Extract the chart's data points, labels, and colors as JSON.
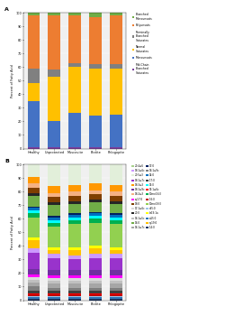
{
  "panel_A": {
    "categories": [
      "Healthy",
      "Unprotected",
      "Muscovite",
      "Biotite",
      "Phlogopite"
    ],
    "segments": [
      {
        "label": "Mid-Chain\nBranched\nSaturates",
        "color": "#7B3F9E",
        "values": [
          1,
          1,
          1,
          1,
          1
        ]
      },
      {
        "label": "Monounsats",
        "color": "#4472C4",
        "values": [
          34,
          19,
          25,
          23,
          24
        ]
      },
      {
        "label": "Normal\nSaturates",
        "color": "#FFC000",
        "values": [
          13,
          33,
          34,
          35,
          34
        ]
      },
      {
        "label": "Terminally\nBranched\nSaturates",
        "color": "#808080",
        "values": [
          11,
          5,
          3,
          3,
          3
        ]
      },
      {
        "label": "Polyunsats",
        "color": "#ED7D31",
        "values": [
          39,
          40,
          35,
          35,
          36
        ]
      },
      {
        "label": "Branched\nMonounsats",
        "color": "#70AD47",
        "values": [
          2,
          2,
          2,
          3,
          2
        ]
      }
    ],
    "ylabel": "Percent of Fatty Acid",
    "ylim": [
      0,
      100
    ]
  },
  "panel_B": {
    "categories": [
      "Healthy",
      "Unprotected",
      "Muscovite",
      "Biotite",
      "Phlogopite"
    ],
    "segments": [
      {
        "label": "i14:0",
        "color": "#1F3864",
        "values": [
          1,
          1,
          1,
          1,
          1
        ]
      },
      {
        "label": "ai15:0",
        "color": "#2E75B6",
        "values": [
          1,
          1,
          1,
          1,
          1
        ]
      },
      {
        "label": "a15:0",
        "color": "#9DC3E6",
        "values": [
          1,
          1,
          1,
          1,
          1
        ]
      },
      {
        "label": "i16:0",
        "color": "#C00000",
        "values": [
          1,
          1,
          1,
          1,
          1
        ]
      },
      {
        "label": "15:1ω6c",
        "color": "#FF0000",
        "values": [
          1,
          1,
          1,
          1,
          1
        ]
      },
      {
        "label": "i17:0",
        "color": "#404040",
        "values": [
          2,
          2,
          2,
          2,
          2
        ]
      },
      {
        "label": "16:1ω9c",
        "color": "#7F7F7F",
        "values": [
          3,
          2,
          2,
          2,
          2
        ]
      },
      {
        "label": "16:1ω7c",
        "color": "#A6A6A6",
        "values": [
          3,
          3,
          3,
          3,
          3
        ]
      },
      {
        "label": "16:1ω5c",
        "color": "#C0C0C0",
        "values": [
          2,
          2,
          2,
          2,
          2
        ]
      },
      {
        "label": "17:1ω6c",
        "color": "#D9D9D9",
        "values": [
          2,
          2,
          2,
          2,
          2
        ]
      },
      {
        "label": "cy17:0",
        "color": "#FF00FF",
        "values": [
          2,
          2,
          2,
          2,
          2
        ]
      },
      {
        "label": "18:1ω9c",
        "color": "#7030A0",
        "values": [
          4,
          4,
          4,
          4,
          4
        ]
      },
      {
        "label": "18:1ω7c",
        "color": "#9933CC",
        "values": [
          12,
          9,
          8,
          9,
          9
        ]
      },
      {
        "label": "18:1ω6c",
        "color": "#CC99FF",
        "values": [
          3,
          3,
          3,
          3,
          3
        ]
      },
      {
        "label": "cy19:0",
        "color": "#FFC000",
        "values": [
          6,
          3,
          4,
          4,
          3
        ]
      },
      {
        "label": "br19:1a",
        "color": "#FFFF00",
        "values": [
          2,
          2,
          2,
          2,
          2
        ]
      },
      {
        "label": "10me18:0",
        "color": "#92D050",
        "values": [
          15,
          15,
          17,
          17,
          17
        ]
      },
      {
        "label": "10me16:0",
        "color": "#00B050",
        "values": [
          3,
          3,
          3,
          3,
          3
        ]
      },
      {
        "label": "15:0",
        "color": "#00FFFF",
        "values": [
          2,
          2,
          2,
          2,
          2
        ]
      },
      {
        "label": "14:0",
        "color": "#0070C0",
        "values": [
          2,
          2,
          2,
          2,
          2
        ]
      },
      {
        "label": "17:0",
        "color": "#002060",
        "values": [
          1,
          1,
          1,
          1,
          1
        ]
      },
      {
        "label": "16:0",
        "color": "#70AD47",
        "values": [
          8,
          8,
          7,
          7,
          7
        ]
      },
      {
        "label": "20:0",
        "color": "#262626",
        "values": [
          2,
          2,
          2,
          2,
          2
        ]
      },
      {
        "label": "18:0",
        "color": "#7F3F00",
        "values": [
          4,
          4,
          4,
          4,
          4
        ]
      },
      {
        "label": "18:2ω3",
        "color": "#F4B183",
        "values": [
          3,
          3,
          3,
          3,
          3
        ]
      },
      {
        "label": "18:3ω3",
        "color": "#FF9900",
        "values": [
          5,
          5,
          5,
          5,
          5
        ]
      },
      {
        "label": "20:5ω3",
        "color": "#E2EFDA",
        "values": [
          10,
          20,
          18,
          17,
          18
        ]
      },
      {
        "label": "20:4ω6",
        "color": "#A9D18E",
        "values": [
          2,
          2,
          2,
          2,
          2
        ]
      }
    ],
    "ylabel": "Percent of Fatty Acid",
    "ylim": [
      0,
      100
    ]
  },
  "fig_width": 5.2,
  "fig_height": 7.0,
  "dpi": 50
}
